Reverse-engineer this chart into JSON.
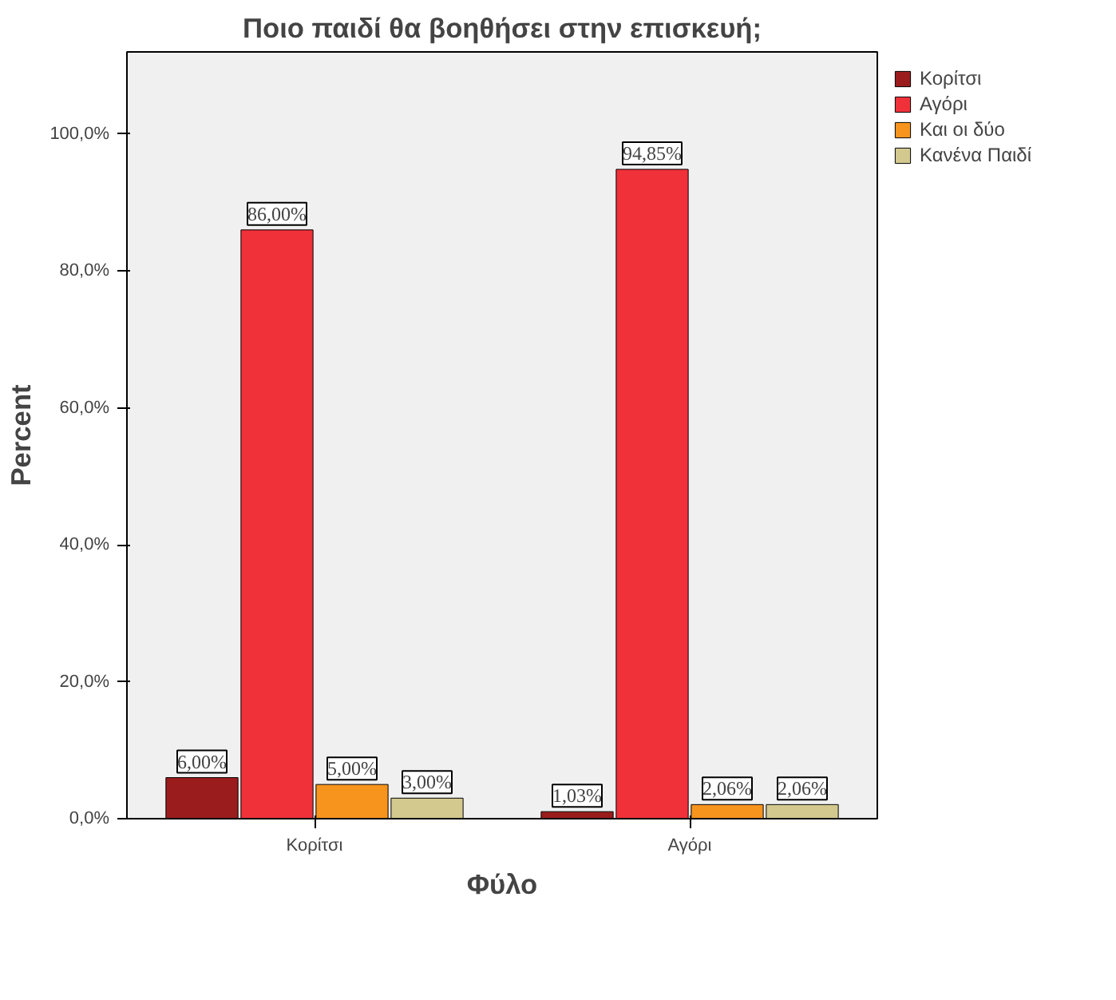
{
  "chart_data": {
    "type": "bar",
    "title": "Ποιο παιδί θα βοηθήσει στην επισκευή;",
    "xlabel": "Φύλο",
    "ylabel": "Percent",
    "categories": [
      "Κορίτσι",
      "Αγόρι"
    ],
    "series": [
      {
        "name": "Κορίτσι",
        "color": "#9b1c1c",
        "values": [
          6.0,
          1.03
        ],
        "value_labels": [
          "6,00%",
          "1,03%"
        ]
      },
      {
        "name": "Αγόρι",
        "color": "#f0313a",
        "values": [
          86.0,
          94.85
        ],
        "value_labels": [
          "86,00%",
          "94,85%"
        ]
      },
      {
        "name": "Και οι δύο",
        "color": "#f7941d",
        "values": [
          5.0,
          2.06
        ],
        "value_labels": [
          "5,00%",
          "2,06%"
        ]
      },
      {
        "name": "Κανένα Παιδί",
        "color": "#d3c98f",
        "values": [
          3.0,
          2.06
        ],
        "value_labels": [
          "3,00%",
          "2,06%"
        ]
      }
    ],
    "ylim": [
      0,
      112
    ],
    "yticks": [
      {
        "value": 0,
        "label": "0,0%"
      },
      {
        "value": 20,
        "label": "20,0%"
      },
      {
        "value": 40,
        "label": "40,0%"
      },
      {
        "value": 60,
        "label": "60,0%"
      },
      {
        "value": 80,
        "label": "80,0%"
      },
      {
        "value": 100,
        "label": "100,0%"
      }
    ],
    "grid": false,
    "legend": "right"
  }
}
